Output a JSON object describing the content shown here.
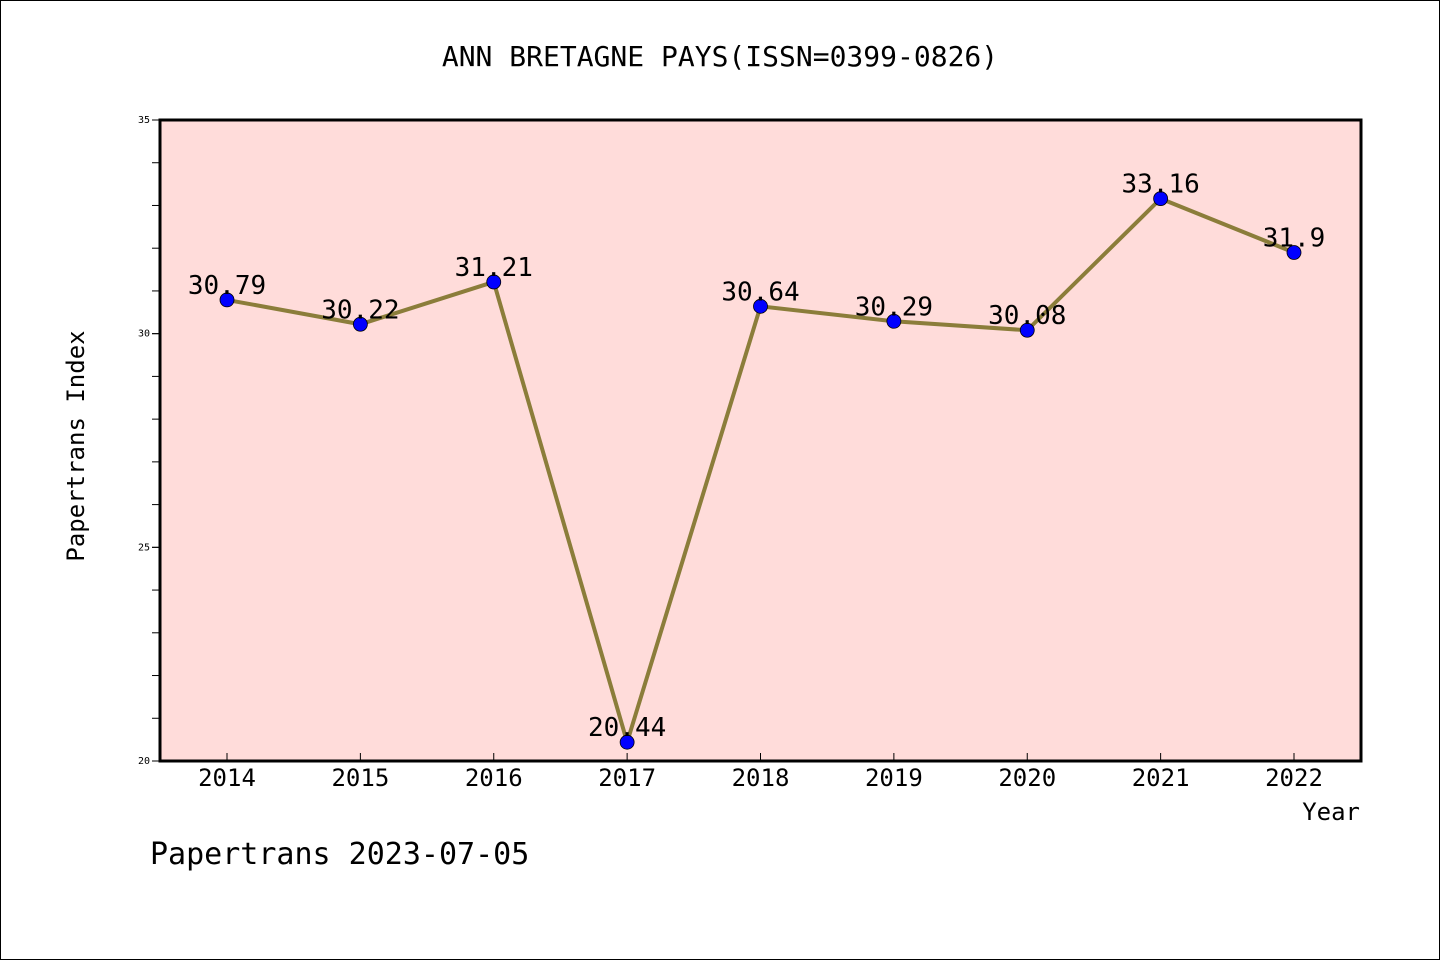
{
  "chart_data": {
    "type": "line",
    "title": "ANN BRETAGNE PAYS(ISSN=0399-0826)",
    "xlabel": "Year",
    "ylabel": "Papertrans Index",
    "categories": [
      "2014",
      "2015",
      "2016",
      "2017",
      "2018",
      "2019",
      "2020",
      "2021",
      "2022"
    ],
    "series": [
      {
        "values": [
          30.79,
          30.22,
          31.21,
          20.44,
          30.64,
          30.29,
          30.08,
          33.16,
          31.9
        ],
        "labels": [
          "30.79",
          "30.22",
          "31.21",
          "20.44",
          "30.64",
          "30.29",
          "30.08",
          "33.16",
          "31.9"
        ],
        "line_color": "#8B7D3A",
        "marker_color": "#0000FF"
      }
    ],
    "ylim": [
      20,
      35
    ],
    "yticks": [
      "20",
      "25",
      "30",
      "35"
    ],
    "grid": false,
    "plot_background": "#FFDCDA"
  },
  "footer": {
    "text": "Papertrans 2023-07-05"
  }
}
